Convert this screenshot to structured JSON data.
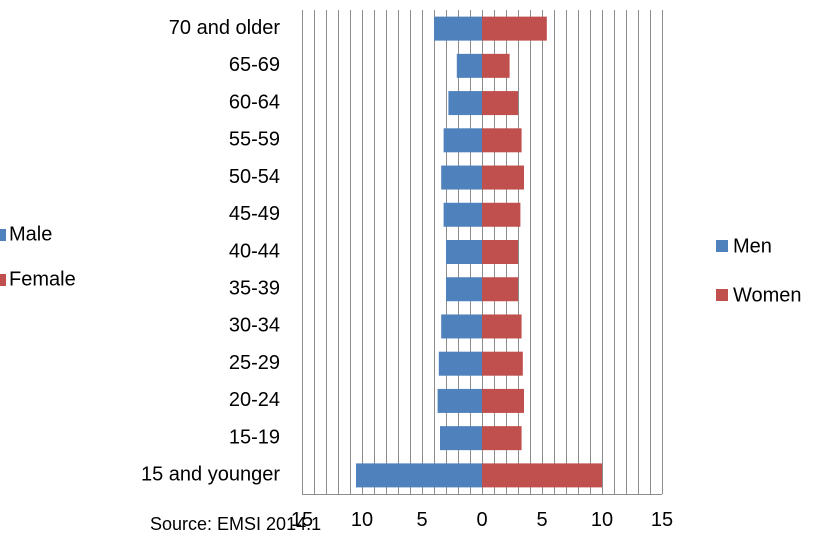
{
  "chart_data": {
    "type": "bar",
    "orientation": "horizontal",
    "layout": "diverging",
    "categories": [
      "15 and younger",
      "15-19",
      "20-24",
      "25-29",
      "30-34",
      "35-39",
      "40-44",
      "45-49",
      "50-54",
      "55-59",
      "60-64",
      "65-69",
      "70 and older"
    ],
    "series": [
      {
        "name": "Men",
        "color": "#4F81BD",
        "side": "left",
        "values": [
          10.5,
          3.5,
          3.7,
          3.6,
          3.4,
          3.0,
          3.0,
          3.2,
          3.4,
          3.2,
          2.8,
          2.1,
          4.0
        ]
      },
      {
        "name": "Women",
        "color": "#C0504D",
        "side": "right",
        "values": [
          10.0,
          3.3,
          3.5,
          3.4,
          3.3,
          3.0,
          3.0,
          3.2,
          3.5,
          3.3,
          3.0,
          2.3,
          5.4
        ]
      }
    ],
    "xlim": [
      -15,
      15
    ],
    "x_ticks": [
      -15,
      -10,
      -5,
      0,
      5,
      10,
      15
    ],
    "x_tick_labels": [
      "15",
      "10",
      "5",
      "0",
      "5",
      "10",
      "15"
    ],
    "grid": "vertical",
    "legend_position": "right"
  },
  "partial_legend": [
    {
      "label": "Male",
      "color": "#4F81BD"
    },
    {
      "label": "Female",
      "color": "#C0504D"
    }
  ],
  "source": "Source: EMSI 2014.1"
}
